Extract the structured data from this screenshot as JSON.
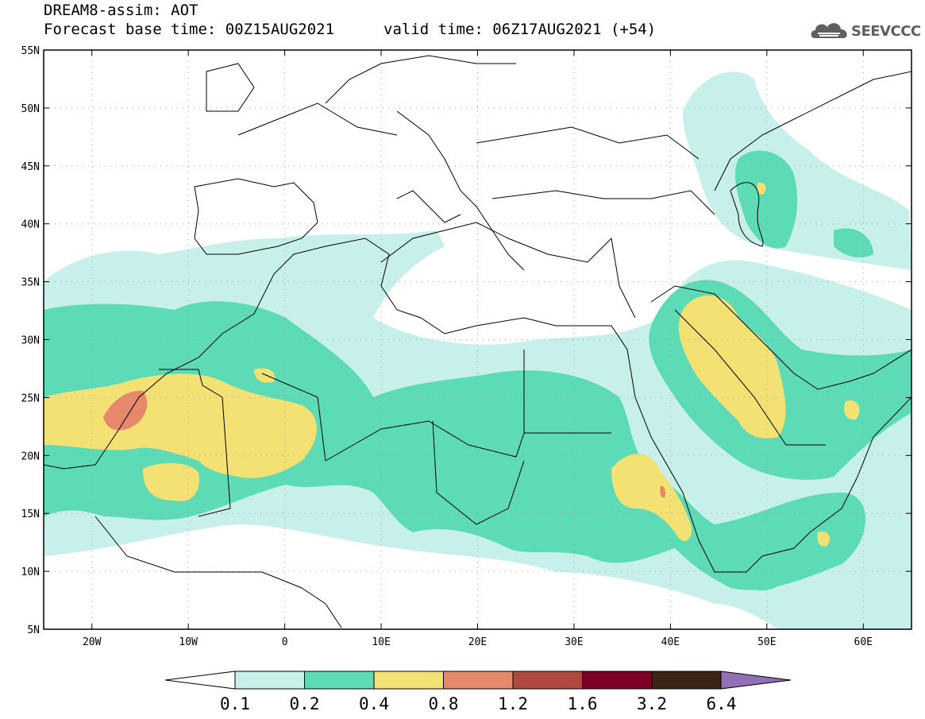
{
  "title": {
    "line1": "DREAM8-assim: AOT",
    "line2": "Forecast base time: 00Z15AUG2021",
    "line3": "valid time: 06Z17AUG2021 (+54)"
  },
  "logo": {
    "text": "SEEVCCC",
    "icon": "cloud-icon"
  },
  "map": {
    "lon_range": [
      -25,
      65
    ],
    "lat_range": [
      5,
      55
    ],
    "lon_ticks": [
      "20W",
      "10W",
      "0",
      "10E",
      "20E",
      "30E",
      "40E",
      "50E",
      "60E"
    ],
    "lat_ticks": [
      "55N",
      "50N",
      "45N",
      "40N",
      "35N",
      "30N",
      "25N",
      "20N",
      "15N",
      "10N",
      "5N"
    ]
  },
  "colorbar": {
    "labels": [
      "0.1",
      "0.2",
      "0.4",
      "0.8",
      "1.2",
      "1.6",
      "3.2",
      "6.4"
    ],
    "colors": [
      "#c8f0ea",
      "#5ddbb6",
      "#f3e173",
      "#e5896a",
      "#b04a40",
      "#7d0026",
      "#3b2416",
      "#9170b6"
    ],
    "low_color": "#ffffff"
  }
}
